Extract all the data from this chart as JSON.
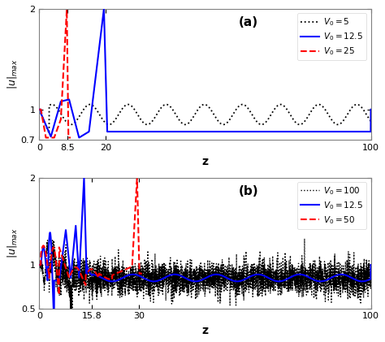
{
  "panel_a": {
    "title": "(a)",
    "ylabel": "|u|_{max}",
    "xlabel": "z",
    "xlim": [
      0,
      100
    ],
    "ylim": [
      0.7,
      2.0
    ],
    "yticks": [
      0.7,
      1.0,
      2.0
    ],
    "ytick_labels": [
      "0.7",
      "1",
      "2"
    ],
    "xticks": [
      0,
      8.5,
      20,
      100
    ],
    "xtick_labels": [
      "0",
      "8.5",
      "20",
      "100"
    ],
    "legend_labels": [
      "$V_0=5$",
      "$V_0=12.5$",
      "$V_0=25$"
    ],
    "legend_colors": [
      "black",
      "blue",
      "red"
    ],
    "legend_styles": [
      "dotted",
      "solid",
      "dashed"
    ]
  },
  "panel_b": {
    "title": "(b)",
    "ylabel": "|u|_{max}",
    "xlabel": "z",
    "xlim": [
      0,
      100
    ],
    "ylim": [
      0.5,
      2.0
    ],
    "yticks": [
      0.5,
      1.0,
      2.0
    ],
    "ytick_labels": [
      "0.5",
      "1",
      "2"
    ],
    "xticks": [
      0,
      15.8,
      30,
      100
    ],
    "xtick_labels": [
      "0",
      "15.8",
      "30",
      "100"
    ],
    "legend_labels": [
      "$V_0=12.5$",
      "$V_0=50$",
      "$V_0=100$"
    ],
    "legend_colors": [
      "blue",
      "red",
      "black"
    ],
    "legend_styles": [
      "solid",
      "dashed",
      "dotted"
    ]
  }
}
